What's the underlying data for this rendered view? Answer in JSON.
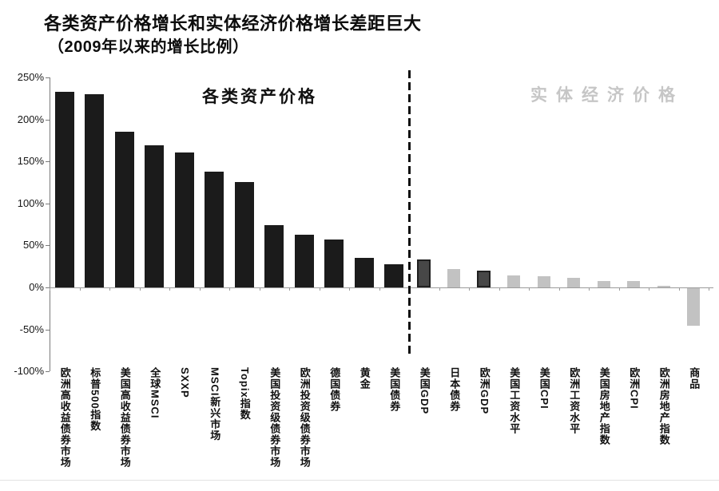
{
  "chart_data": {
    "type": "bar",
    "title": "各类资产价格增长和实体经济价格增长差距巨大",
    "subtitle": "（2009年以来的增长比例）",
    "ylabel": "",
    "xlabel": "",
    "ylim": [
      -100,
      250
    ],
    "ytick_step": 50,
    "ytick_labels": [
      "250%",
      "200%",
      "150%",
      "100%",
      "50%",
      "0%",
      "-50%",
      "-100%"
    ],
    "grid": "off",
    "legend": "none",
    "sections": [
      {
        "label": "各类资产价格",
        "color": "#111111",
        "bar_style": "black"
      },
      {
        "label": "实体经济价格",
        "color": "#c6c6c6",
        "bar_style": "gray"
      }
    ],
    "divider_after_index": 11,
    "bars": [
      {
        "label": "欧洲高收益债券市场",
        "value": 233,
        "style": "black"
      },
      {
        "label": "标普500指数",
        "value": 230,
        "style": "black"
      },
      {
        "label": "美国高收益债券市场",
        "value": 185,
        "style": "black"
      },
      {
        "label": "全球MSCI",
        "value": 169,
        "style": "black"
      },
      {
        "label": "SXXP",
        "value": 161,
        "style": "black"
      },
      {
        "label": "MSCI新兴市场",
        "value": 138,
        "style": "black"
      },
      {
        "label": "Topix指数",
        "value": 126,
        "style": "black"
      },
      {
        "label": "美国投资级债券市场",
        "value": 74,
        "style": "black"
      },
      {
        "label": "欧洲投资级债券市场",
        "value": 63,
        "style": "black"
      },
      {
        "label": "德国债券",
        "value": 57,
        "style": "black"
      },
      {
        "label": "黄金",
        "value": 35,
        "style": "black"
      },
      {
        "label": "美国债券",
        "value": 28,
        "style": "black"
      },
      {
        "label": "美国GDP",
        "value": 33,
        "style": "darkgray"
      },
      {
        "label": "日本债券",
        "value": 22,
        "style": "lightgray"
      },
      {
        "label": "欧洲GDP",
        "value": 20,
        "style": "darkgray"
      },
      {
        "label": "美国工资水平",
        "value": 14,
        "style": "lightgray"
      },
      {
        "label": "美国CPI",
        "value": 13,
        "style": "lightgray"
      },
      {
        "label": "欧洲工资水平",
        "value": 11,
        "style": "lightgray"
      },
      {
        "label": "美国房地产指数",
        "value": 8,
        "style": "lightgray"
      },
      {
        "label": "欧洲CPI",
        "value": 8,
        "style": "lightgray"
      },
      {
        "label": "欧洲房地产指数",
        "value": 1.5,
        "style": "lightgray"
      },
      {
        "label": "商品",
        "value": -45,
        "style": "lightgray"
      }
    ],
    "colors": {
      "black_bar": "#1b1b1b",
      "dark_gray_bar": "#474747",
      "dark_gray_border": "#202020",
      "light_gray_bar": "#c2c2c2",
      "economy_label": "#c6c6c6",
      "axis": "#7a7a7a",
      "zero_line": "#9b9b9b",
      "divider": "#101010"
    }
  }
}
